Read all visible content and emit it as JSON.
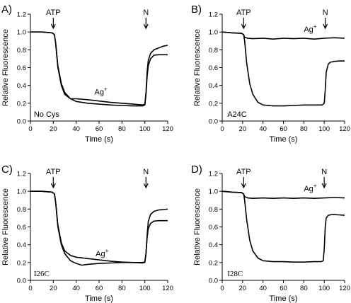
{
  "chart_data": [
    {
      "type": "line",
      "panel_letter": "A)",
      "xlabel": "Time (s)",
      "ylabel": "Relative Fluorescence",
      "xlim": [
        0,
        120
      ],
      "ylim": [
        0.0,
        1.2
      ],
      "xticks": [
        "0",
        "20",
        "40",
        "60",
        "80",
        "100",
        "120"
      ],
      "yticks": [
        "0.0",
        "0.2",
        "0.4",
        "0.6",
        "0.8",
        "1.0",
        "1.2"
      ],
      "annotations": [
        {
          "text": "ATP",
          "x": 20,
          "arrow": true
        },
        {
          "text": "N",
          "x": 101,
          "arrow": true
        },
        {
          "text": "Ag",
          "sup": "+",
          "x": 56,
          "y": 0.3
        },
        {
          "text": "No Cys",
          "x": 3,
          "y": 0.08
        }
      ],
      "series": [
        {
          "x": [
            0,
            10,
            19,
            21,
            22,
            24,
            27,
            30,
            35,
            40,
            50,
            60,
            70,
            80,
            90,
            98,
            100,
            101,
            102,
            103,
            105,
            108,
            112,
            116,
            120
          ],
          "y": [
            1.0,
            1.0,
            0.99,
            0.97,
            0.88,
            0.62,
            0.42,
            0.32,
            0.25,
            0.22,
            0.2,
            0.19,
            0.18,
            0.175,
            0.17,
            0.17,
            0.18,
            0.3,
            0.5,
            0.62,
            0.7,
            0.74,
            0.745,
            0.745,
            0.745
          ]
        },
        {
          "x": [
            0,
            10,
            19,
            21,
            22,
            24,
            27,
            30,
            35,
            40,
            50,
            60,
            70,
            80,
            90,
            98,
            100,
            101,
            102,
            103,
            105,
            108,
            112,
            116,
            120
          ],
          "y": [
            1.0,
            1.0,
            0.99,
            0.97,
            0.88,
            0.6,
            0.4,
            0.3,
            0.25,
            0.25,
            0.24,
            0.225,
            0.21,
            0.2,
            0.19,
            0.18,
            0.19,
            0.32,
            0.55,
            0.68,
            0.76,
            0.8,
            0.82,
            0.84,
            0.85
          ]
        }
      ]
    },
    {
      "type": "line",
      "panel_letter": "B)",
      "xlabel": "Time (s)",
      "ylabel": "Relative Fluorescence",
      "xlim": [
        0,
        120
      ],
      "ylim": [
        0.0,
        1.2
      ],
      "xticks": [
        "0",
        "20",
        "40",
        "60",
        "80",
        "100",
        "120"
      ],
      "yticks": [
        "0.0",
        "0.2",
        "0.4",
        "0.6",
        "0.8",
        "1.0",
        "1.2"
      ],
      "annotations": [
        {
          "text": "ATP",
          "x": 21,
          "arrow": true
        },
        {
          "text": "N",
          "x": 101,
          "arrow": true
        },
        {
          "text": "Ag",
          "sup": "+",
          "x": 80,
          "y": 1.0
        },
        {
          "text": "A24C",
          "x": 5,
          "y": 0.08
        }
      ],
      "series": [
        {
          "x": [
            0,
            10,
            19,
            21,
            22,
            25,
            30,
            40,
            50,
            60,
            70,
            80,
            90,
            100,
            110,
            120
          ],
          "y": [
            1.0,
            0.99,
            0.985,
            0.97,
            0.94,
            0.93,
            0.925,
            0.93,
            0.92,
            0.93,
            0.925,
            0.93,
            0.92,
            0.93,
            0.935,
            0.93
          ]
        },
        {
          "x": [
            0,
            10,
            19,
            21,
            22,
            24,
            27,
            30,
            35,
            40,
            50,
            60,
            70,
            80,
            90,
            98,
            100,
            101,
            102,
            104,
            106,
            110,
            115,
            120
          ],
          "y": [
            1.0,
            0.99,
            0.985,
            0.97,
            0.9,
            0.65,
            0.42,
            0.3,
            0.21,
            0.18,
            0.17,
            0.17,
            0.175,
            0.18,
            0.18,
            0.18,
            0.2,
            0.35,
            0.55,
            0.64,
            0.66,
            0.67,
            0.675,
            0.675
          ]
        }
      ]
    },
    {
      "type": "line",
      "panel_letter": "C)",
      "xlabel": "Time (s)",
      "ylabel": "Relative Fluorescence",
      "xlim": [
        0,
        120
      ],
      "ylim": [
        0.0,
        1.2
      ],
      "xticks": [
        "0",
        "20",
        "40",
        "60",
        "80",
        "100",
        "120"
      ],
      "yticks": [
        "0.0",
        "0.2",
        "0.4",
        "0.6",
        "0.8",
        "1.0",
        "1.2"
      ],
      "annotations": [
        {
          "text": "ATP",
          "x": 20,
          "arrow": true
        },
        {
          "text": "N",
          "x": 101,
          "arrow": true
        },
        {
          "text": "Ag",
          "sup": "+",
          "x": 57,
          "y": 0.27
        },
        {
          "text": "I26C",
          "x": 3,
          "y": 0.08
        }
      ],
      "series": [
        {
          "x": [
            0,
            10,
            19,
            21,
            22,
            24,
            27,
            30,
            35,
            40,
            45,
            50,
            60,
            70,
            80,
            90,
            98,
            100,
            101,
            102,
            103,
            105,
            108,
            112,
            116,
            120
          ],
          "y": [
            1.0,
            1.0,
            0.99,
            0.97,
            0.88,
            0.6,
            0.4,
            0.3,
            0.22,
            0.19,
            0.17,
            0.18,
            0.19,
            0.195,
            0.2,
            0.2,
            0.2,
            0.21,
            0.3,
            0.48,
            0.58,
            0.64,
            0.665,
            0.67,
            0.67,
            0.67
          ]
        },
        {
          "x": [
            0,
            10,
            19,
            21,
            22,
            24,
            27,
            30,
            35,
            40,
            50,
            60,
            70,
            80,
            90,
            98,
            100,
            101,
            102,
            103,
            105,
            108,
            112,
            116,
            120
          ],
          "y": [
            1.0,
            1.0,
            0.99,
            0.97,
            0.88,
            0.62,
            0.42,
            0.33,
            0.28,
            0.26,
            0.245,
            0.23,
            0.215,
            0.205,
            0.2,
            0.195,
            0.2,
            0.3,
            0.5,
            0.66,
            0.74,
            0.775,
            0.79,
            0.795,
            0.8
          ]
        }
      ]
    },
    {
      "type": "line",
      "panel_letter": "D)",
      "xlabel": "Time (s)",
      "ylabel": "Relative Fluorescence",
      "xlim": [
        0,
        120
      ],
      "ylim": [
        0.0,
        1.2
      ],
      "xticks": [
        "0",
        "20",
        "40",
        "60",
        "80",
        "100",
        "120"
      ],
      "yticks": [
        "0.0",
        "0.2",
        "0.4",
        "0.6",
        "0.8",
        "1.0",
        "1.2"
      ],
      "annotations": [
        {
          "text": "ATP",
          "x": 21,
          "arrow": true
        },
        {
          "text": "N",
          "x": 100,
          "arrow": true
        },
        {
          "text": "Ag",
          "sup": "+",
          "x": 80,
          "y": 1.0
        },
        {
          "text": "I28C",
          "x": 5,
          "y": 0.08
        }
      ],
      "series": [
        {
          "x": [
            0,
            10,
            19,
            21,
            22,
            25,
            30,
            40,
            50,
            60,
            70,
            80,
            90,
            100,
            110,
            120
          ],
          "y": [
            1.0,
            0.99,
            0.985,
            0.97,
            0.94,
            0.925,
            0.92,
            0.925,
            0.92,
            0.925,
            0.92,
            0.925,
            0.92,
            0.925,
            0.93,
            0.925
          ]
        },
        {
          "x": [
            0,
            10,
            19,
            21,
            22,
            24,
            27,
            30,
            35,
            40,
            50,
            60,
            70,
            80,
            90,
            97,
            99,
            100,
            101,
            102,
            104,
            108,
            114,
            120
          ],
          "y": [
            1.0,
            0.99,
            0.985,
            0.97,
            0.9,
            0.68,
            0.45,
            0.33,
            0.25,
            0.22,
            0.21,
            0.21,
            0.205,
            0.205,
            0.21,
            0.21,
            0.22,
            0.35,
            0.6,
            0.7,
            0.73,
            0.74,
            0.735,
            0.73
          ]
        }
      ]
    }
  ]
}
